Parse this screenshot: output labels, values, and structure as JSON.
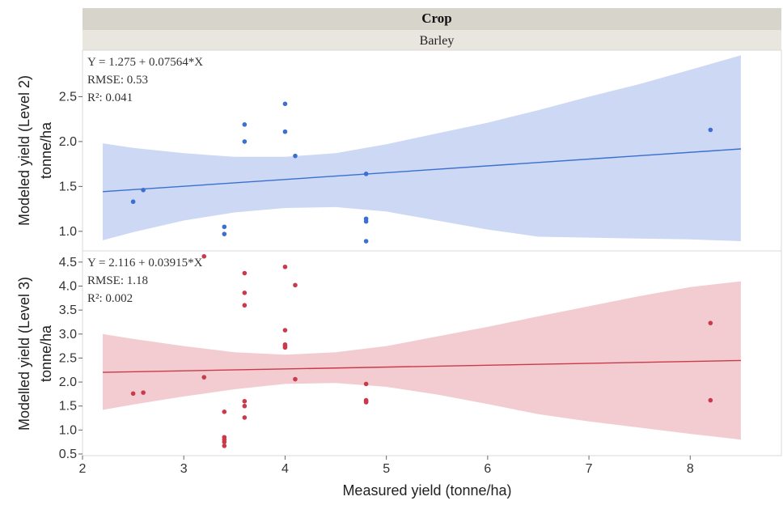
{
  "header": {
    "title": "Crop",
    "subtitle": "Barley"
  },
  "x_axis": {
    "label": "Measured yield (tonne/ha)",
    "ticks": [
      2,
      3,
      4,
      5,
      6,
      7,
      8
    ],
    "range": [
      2,
      8.9
    ]
  },
  "chart_data": [
    {
      "type": "scatter",
      "panel": "Level 2",
      "ylabel_line1": "Modeled yield (Level 2)",
      "ylabel_line2": "tonne/ha",
      "ylim": [
        0.8,
        3.0
      ],
      "yticks": [
        1.0,
        1.5,
        2.0,
        2.5
      ],
      "ytick_labels": [
        "1.0",
        "1.5",
        "2.0",
        "2.5"
      ],
      "color": "#3b6fd0",
      "band_color": "#ccd8f4",
      "stats": [
        "Y = 1.275 + 0.07564*X",
        "RMSE: 0.53",
        "R²: 0.041"
      ],
      "fit": {
        "intercept": 1.275,
        "slope": 0.07564,
        "x_range": [
          2.2,
          8.5
        ]
      },
      "band": {
        "x": [
          2.2,
          2.5,
          3.0,
          3.5,
          4.0,
          4.5,
          5.0,
          5.5,
          6.0,
          6.5,
          7.0,
          7.5,
          8.0,
          8.5
        ],
        "upper": [
          1.98,
          1.93,
          1.87,
          1.83,
          1.83,
          1.87,
          1.97,
          2.09,
          2.21,
          2.35,
          2.5,
          2.64,
          2.8,
          2.96
        ],
        "lower": [
          0.9,
          0.99,
          1.12,
          1.21,
          1.26,
          1.27,
          1.22,
          1.12,
          1.02,
          0.94,
          0.93,
          0.92,
          0.91,
          0.89
        ]
      },
      "points": [
        [
          2.5,
          1.33
        ],
        [
          2.6,
          1.46
        ],
        [
          3.4,
          1.05
        ],
        [
          3.4,
          0.97
        ],
        [
          3.6,
          2.19
        ],
        [
          3.6,
          2.0
        ],
        [
          4.0,
          2.42
        ],
        [
          4.0,
          2.11
        ],
        [
          4.1,
          1.84
        ],
        [
          4.8,
          1.64
        ],
        [
          4.8,
          1.14
        ],
        [
          4.8,
          1.11
        ],
        [
          4.8,
          0.89
        ],
        [
          8.2,
          2.13
        ]
      ]
    },
    {
      "type": "scatter",
      "panel": "Level 3",
      "ylabel_line1": "Modelled yield (Level 3)",
      "ylabel_line2": "tonne/ha",
      "ylim": [
        0.5,
        4.7
      ],
      "yticks": [
        0.5,
        1.0,
        1.5,
        2.0,
        2.5,
        3.0,
        3.5,
        4.0,
        4.5
      ],
      "ytick_labels": [
        "0.5",
        "1.0",
        "1.5",
        "2.0",
        "2.5",
        "3.0",
        "3.5",
        "4.0",
        "4.5"
      ],
      "color": "#c93a4a",
      "band_color": "#f3ccd1",
      "stats": [
        "Y = 2.116 + 0.03915*X",
        "RMSE: 1.18",
        "R²: 0.002"
      ],
      "fit": {
        "intercept": 2.116,
        "slope": 0.03915,
        "x_range": [
          2.2,
          8.5
        ]
      },
      "band": {
        "x": [
          2.2,
          2.5,
          3.0,
          3.5,
          4.0,
          4.5,
          5.0,
          5.5,
          6.0,
          6.5,
          7.0,
          7.5,
          8.0,
          8.5
        ],
        "upper": [
          3.0,
          2.9,
          2.75,
          2.62,
          2.57,
          2.62,
          2.75,
          2.95,
          3.15,
          3.37,
          3.58,
          3.79,
          3.98,
          4.1
        ],
        "lower": [
          1.42,
          1.53,
          1.7,
          1.85,
          1.96,
          1.98,
          1.9,
          1.74,
          1.54,
          1.33,
          1.18,
          1.05,
          0.92,
          0.8
        ]
      },
      "points": [
        [
          2.5,
          1.76
        ],
        [
          2.6,
          1.78
        ],
        [
          3.2,
          4.62
        ],
        [
          3.2,
          2.1
        ],
        [
          3.4,
          1.38
        ],
        [
          3.4,
          0.85
        ],
        [
          3.4,
          0.8
        ],
        [
          3.4,
          0.75
        ],
        [
          3.4,
          0.67
        ],
        [
          3.6,
          4.27
        ],
        [
          3.6,
          3.86
        ],
        [
          3.6,
          3.6
        ],
        [
          3.6,
          1.6
        ],
        [
          3.6,
          1.5
        ],
        [
          3.6,
          1.26
        ],
        [
          4.0,
          4.4
        ],
        [
          4.0,
          3.08
        ],
        [
          4.0,
          2.78
        ],
        [
          4.0,
          2.75
        ],
        [
          4.0,
          2.72
        ],
        [
          4.1,
          4.02
        ],
        [
          4.1,
          2.06
        ],
        [
          4.8,
          1.96
        ],
        [
          4.8,
          1.62
        ],
        [
          4.8,
          1.6
        ],
        [
          4.8,
          1.58
        ],
        [
          8.2,
          3.23
        ],
        [
          8.2,
          1.62
        ]
      ]
    }
  ]
}
